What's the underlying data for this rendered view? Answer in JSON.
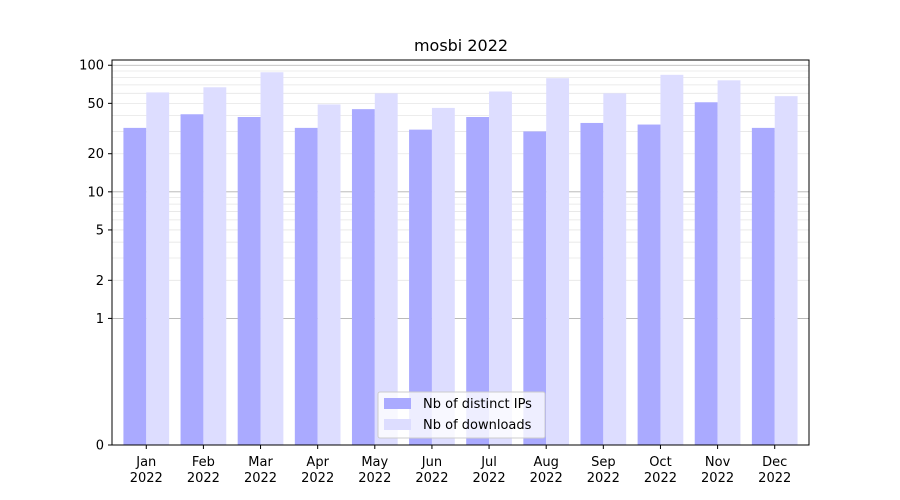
{
  "chart_data": {
    "type": "bar",
    "title": "mosbi 2022",
    "categories": [
      "Jan\n2022",
      "Feb\n2022",
      "Mar\n2022",
      "Apr\n2022",
      "May\n2022",
      "Jun\n2022",
      "Jul\n2022",
      "Aug\n2022",
      "Sep\n2022",
      "Oct\n2022",
      "Nov\n2022",
      "Dec\n2022"
    ],
    "series": [
      {
        "name": "Nb of distinct IPs",
        "color": "#aaaaff",
        "values": [
          32,
          41,
          39,
          32,
          45,
          31,
          39,
          30,
          35,
          34,
          51,
          32
        ]
      },
      {
        "name": "Nb of downloads",
        "color": "#ddddff",
        "values": [
          61,
          67,
          88,
          49,
          60,
          46,
          62,
          79,
          60,
          84,
          76,
          57
        ]
      }
    ],
    "yscale": "symlog",
    "ylim": [
      0,
      110
    ],
    "yticks": [
      0,
      1,
      2,
      5,
      10,
      20,
      50,
      100
    ],
    "grid": true,
    "legend_position": "bottom-center",
    "xlabel": "",
    "ylabel": ""
  }
}
